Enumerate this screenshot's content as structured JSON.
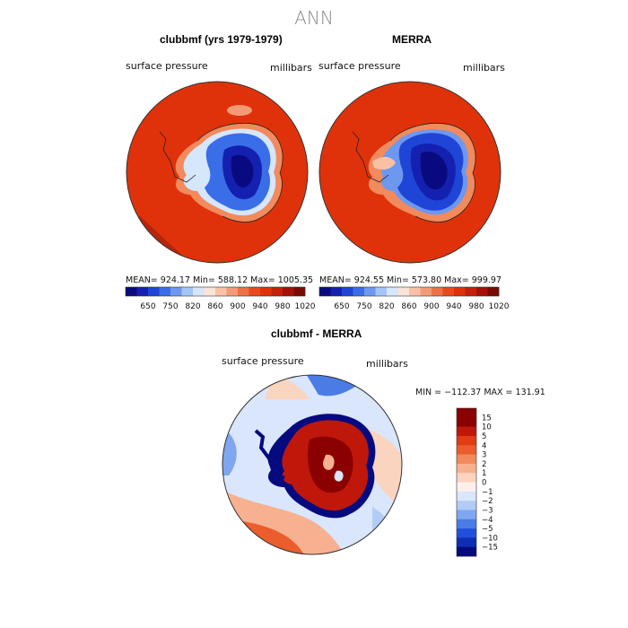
{
  "title": "ANN",
  "panels": [
    {
      "title": "clubbmf (yrs 1979-1979)",
      "variable": "surface pressure",
      "units": "millibars",
      "stats": "MEAN= 924.17   Min= 588.12   Max= 1005.35"
    },
    {
      "title": "MERRA",
      "variable": "surface pressure",
      "units": "millibars",
      "stats": "MEAN= 924.55   Min= 573.80   Max= 999.97"
    },
    {
      "title": "clubbmf - MERRA",
      "variable": "surface pressure",
      "units": "millibars",
      "stats": "MIN = −112.37  MAX = 131.91"
    }
  ],
  "chart_data": [
    {
      "type": "heatmap",
      "title": "clubbmf (yrs 1979-1979)",
      "map": "south polar stereographic",
      "variable": "surface pressure",
      "units": "millibars",
      "mean": 924.17,
      "min": 588.12,
      "max": 1005.35,
      "colorbar_labels": [
        "650",
        "750",
        "820",
        "860",
        "900",
        "940",
        "980",
        "1020"
      ]
    },
    {
      "type": "heatmap",
      "title": "MERRA",
      "map": "south polar stereographic",
      "variable": "surface pressure",
      "units": "millibars",
      "mean": 924.55,
      "min": 573.8,
      "max": 999.97,
      "colorbar_labels": [
        "650",
        "750",
        "820",
        "860",
        "900",
        "940",
        "980",
        "1020"
      ]
    },
    {
      "type": "heatmap",
      "title": "clubbmf - MERRA",
      "map": "south polar stereographic",
      "variable": "surface pressure",
      "units": "millibars",
      "min": -112.37,
      "max": 131.91,
      "colorbar_labels": [
        "15",
        "10",
        "5",
        "4",
        "3",
        "2",
        "1",
        "0",
        "−1",
        "−2",
        "−3",
        "−4",
        "−5",
        "−10",
        "−15"
      ]
    }
  ],
  "colors": {
    "abs_scale": [
      "#0a0a80",
      "#1421b0",
      "#1f45d6",
      "#3a6ee8",
      "#6d98f0",
      "#a4c4f7",
      "#d6e6fb",
      "#fbe3d8",
      "#f8c1a6",
      "#f39b77",
      "#ee7046",
      "#e84a1f",
      "#e0320a",
      "#c4200a",
      "#a31208",
      "#7a0a05"
    ],
    "diff_scale": [
      "#8b0000",
      "#c0170b",
      "#e13c12",
      "#eb5d2c",
      "#f18a5c",
      "#f7b190",
      "#fbd4c0",
      "#fdf0ea",
      "#d9e6fb",
      "#b2ccf6",
      "#7fa6ee",
      "#4b7ce6",
      "#2250dc",
      "#0e2fb4",
      "#050b7e"
    ],
    "ocean_abs": "#e0320a",
    "land_low": "#0a0a80"
  }
}
